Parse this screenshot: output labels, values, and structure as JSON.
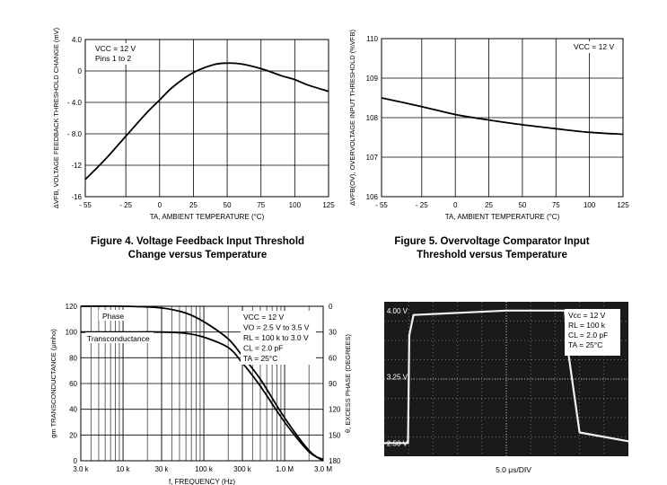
{
  "figures": [
    {
      "ylabel": "ΔVFB, VOLTAGE FEEDBACK THRESHOLD CHANGE (mV)",
      "xlabel": "TA, AMBIENT TEMPERATURE (°C)",
      "yticks": [
        "4.0",
        "0",
        "- 4.0",
        "- 8.0",
        "-12",
        "-16"
      ],
      "xticks": [
        "- 55",
        "- 25",
        "0",
        "25",
        "50",
        "75",
        "100",
        "125"
      ],
      "legend": [
        "VCC = 12 V",
        "Pins 1 to 2"
      ]
    },
    {
      "ylabel": "ΔVFB(OV), OVERVOLTAGE INPUT THRESHOLD (%VFB)",
      "xlabel": "TA, AMBIENT TEMPERATURE (°C)",
      "yticks": [
        "110",
        "109",
        "108",
        "107",
        "106"
      ],
      "xticks": [
        "- 55",
        "- 25",
        "0",
        "25",
        "50",
        "75",
        "100",
        "125"
      ],
      "legend": [
        "VCC = 12 V"
      ]
    },
    {
      "ylabel_left": "gm TRANSCONDUCTANCE (μmho)",
      "ylabel_right": "θ, EXCESS PHASE (DEGREES)",
      "xlabel": "f, FREQUENCY (Hz)",
      "yticks_left": [
        "120",
        "100",
        "80",
        "60",
        "40",
        "20",
        "0"
      ],
      "yticks_right": [
        "0",
        "30",
        "60",
        "90",
        "120",
        "150",
        "180"
      ],
      "xticks": [
        "3.0 k",
        "10 k",
        "30 k",
        "100 k",
        "300 k",
        "1.0 M",
        "3.0 M"
      ],
      "curve_labels": [
        "Phase",
        "Transconductance"
      ],
      "legend": [
        "VCC = 12 V",
        "VO = 2.5 V to 3.5 V",
        "RL = 100 k to 3.0 V",
        "CL = 2.0 pF",
        "TA = 25°C"
      ]
    },
    {
      "yticks": [
        "4.00 V",
        "3.25 V",
        "2.50 V"
      ],
      "xlabel": "5.0 μs/DIV",
      "legend": [
        "Vcc = 12 V",
        "RL = 100 k",
        "CL = 2.0 pF",
        "TA = 25°C"
      ]
    }
  ],
  "captions": {
    "fig4": [
      "Figure 4. Voltage Feedback Input Threshold",
      "Change versus Temperature"
    ],
    "fig5": [
      "Figure 5. Overvoltage Comparator Input",
      "Threshold versus Temperature"
    ]
  },
  "chart_data": [
    {
      "type": "line",
      "x": [
        -55,
        -40,
        -25,
        -10,
        0,
        10,
        25,
        40,
        50,
        60,
        75,
        90,
        100,
        110,
        125
      ],
      "series": [
        {
          "values": [
            -13.8,
            -11.2,
            -8.3,
            -5.4,
            -3.7,
            -2.0,
            -0.2,
            0.8,
            1.0,
            0.9,
            0.3,
            -0.6,
            -1.1,
            -1.8,
            -2.6
          ]
        }
      ],
      "ylim": [
        -16,
        4
      ],
      "xlim": [
        -55,
        125
      ],
      "grid": true
    },
    {
      "type": "line",
      "x": [
        -55,
        -25,
        0,
        25,
        50,
        75,
        100,
        125
      ],
      "series": [
        {
          "values": [
            108.5,
            108.28,
            108.08,
            107.94,
            107.82,
            107.72,
            107.63,
            107.58
          ]
        }
      ],
      "ylim": [
        106,
        110
      ],
      "xlim": [
        -55,
        125
      ],
      "grid": true
    },
    {
      "type": "line",
      "x": [
        3000,
        10000,
        30000,
        60000,
        100000,
        200000,
        300000,
        500000,
        1000000,
        2000000,
        3000000
      ],
      "series": [
        {
          "name": "Phase",
          "axis": "right",
          "values": [
            0,
            0,
            2,
            8,
            18,
            38,
            58,
            85,
            130,
            168,
            180
          ]
        },
        {
          "name": "Transconductance",
          "axis": "left",
          "values": [
            100,
            100,
            100,
            99,
            96,
            88,
            76,
            58,
            30,
            7,
            1
          ]
        }
      ],
      "ylim_left": [
        0,
        120
      ],
      "ylim_right": [
        0,
        180
      ],
      "xscale": "log",
      "xlim": [
        3000,
        3000000
      ],
      "grid": true
    },
    {
      "type": "line",
      "x": [
        0,
        1.95,
        2.05,
        2.4,
        10,
        14.8,
        15.0,
        16,
        20
      ],
      "series": [
        {
          "values": [
            2.5,
            2.5,
            3.72,
            3.95,
            4.0,
            4.0,
            3.6,
            2.62,
            2.52
          ]
        }
      ],
      "ylim": [
        2.35,
        4.1
      ],
      "xlim": [
        0,
        20
      ]
    }
  ]
}
